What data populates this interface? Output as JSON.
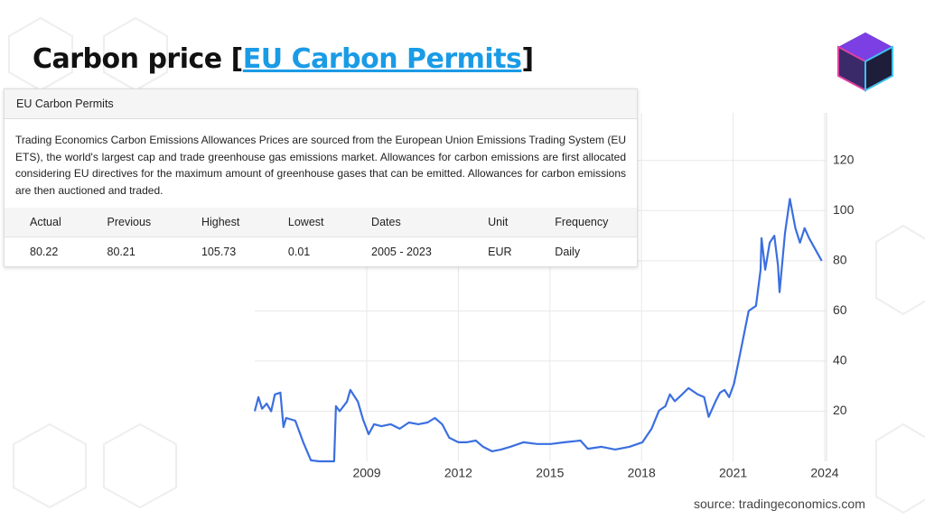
{
  "header": {
    "title_prefix": "Carbon price [",
    "title_link": "EU Carbon Permits",
    "title_suffix": "]"
  },
  "card": {
    "title": "EU Carbon Permits",
    "description": "Trading Economics Carbon Emissions Allowances Prices are sourced from the European Union Emissions Trading System (EU ETS), the world's largest cap and trade greenhouse gas emissions market. Allowances for carbon emissions are first allocated considering EU directives for the maximum amount of greenhouse gases that can be emitted. Allowances for carbon emissions are then auctioned and traded.",
    "table": {
      "columns": [
        "Actual",
        "Previous",
        "Highest",
        "Lowest",
        "Dates",
        "Unit",
        "Frequency"
      ],
      "rows": [
        [
          "80.22",
          "80.21",
          "105.73",
          "0.01",
          "2005 - 2023",
          "EUR",
          "Daily"
        ]
      ]
    }
  },
  "chart_data": {
    "type": "line",
    "x": [
      2005.33,
      2005.45,
      2005.57,
      2005.72,
      2005.87,
      2005.99,
      2006.17,
      2006.27,
      2006.36,
      2006.66,
      2006.92,
      2007.17,
      2007.44,
      2007.93,
      2007.99,
      2008.11,
      2008.35,
      2008.46,
      2008.71,
      2008.88,
      2009.06,
      2009.24,
      2009.48,
      2009.78,
      2010.08,
      2010.38,
      2010.69,
      2010.99,
      2011.23,
      2011.47,
      2011.7,
      2012.0,
      2012.27,
      2012.57,
      2012.81,
      2013.1,
      2013.4,
      2013.7,
      2014.13,
      2014.58,
      2015.03,
      2015.48,
      2016.0,
      2016.24,
      2016.69,
      2017.14,
      2017.6,
      2018.03,
      2018.33,
      2018.57,
      2018.78,
      2018.93,
      2019.09,
      2019.33,
      2019.54,
      2019.84,
      2020.05,
      2020.2,
      2020.42,
      2020.57,
      2020.72,
      2020.87,
      2021.03,
      2021.18,
      2021.36,
      2021.51,
      2021.75,
      2021.9,
      2021.93,
      2022.05,
      2022.2,
      2022.35,
      2022.47,
      2022.52,
      2022.7,
      2022.86,
      2023.04,
      2023.19,
      2023.34,
      2023.49,
      2023.9
    ],
    "series": [
      {
        "name": "EU Carbon Permits",
        "color": "#3b6fe0",
        "values": [
          20,
          25.6,
          21,
          23,
          20,
          26.7,
          27.4,
          13.7,
          17.3,
          16.2,
          7.6,
          0.4,
          0,
          0,
          22,
          20,
          23.8,
          28.5,
          23.8,
          16.6,
          10.8,
          14.8,
          14,
          14.8,
          13,
          15.5,
          14.8,
          15.5,
          17.3,
          14.8,
          9.4,
          7.6,
          7.6,
          8.3,
          5.8,
          4,
          4.7,
          5.8,
          7.6,
          6.9,
          6.9,
          7.6,
          8.3,
          5,
          5.8,
          4.7,
          5.8,
          7.6,
          13,
          20.2,
          22,
          26.7,
          24,
          26.7,
          29.2,
          26.7,
          25.6,
          17.7,
          23.8,
          27.4,
          28.5,
          25.6,
          31,
          40,
          51,
          60,
          62,
          76.4,
          89,
          76.4,
          87.2,
          90,
          78,
          67.5,
          91,
          104.7,
          93,
          87.2,
          93,
          89,
          80
        ]
      }
    ],
    "xlim": [
      2005.33,
      2024.06
    ],
    "ylim": [
      0,
      139
    ],
    "xticks": [
      2009,
      2012,
      2015,
      2018,
      2021,
      2024
    ],
    "yticks": [
      20,
      40,
      60,
      80,
      100,
      120
    ],
    "grid": true,
    "source": "source: tradingeconomics.com"
  }
}
